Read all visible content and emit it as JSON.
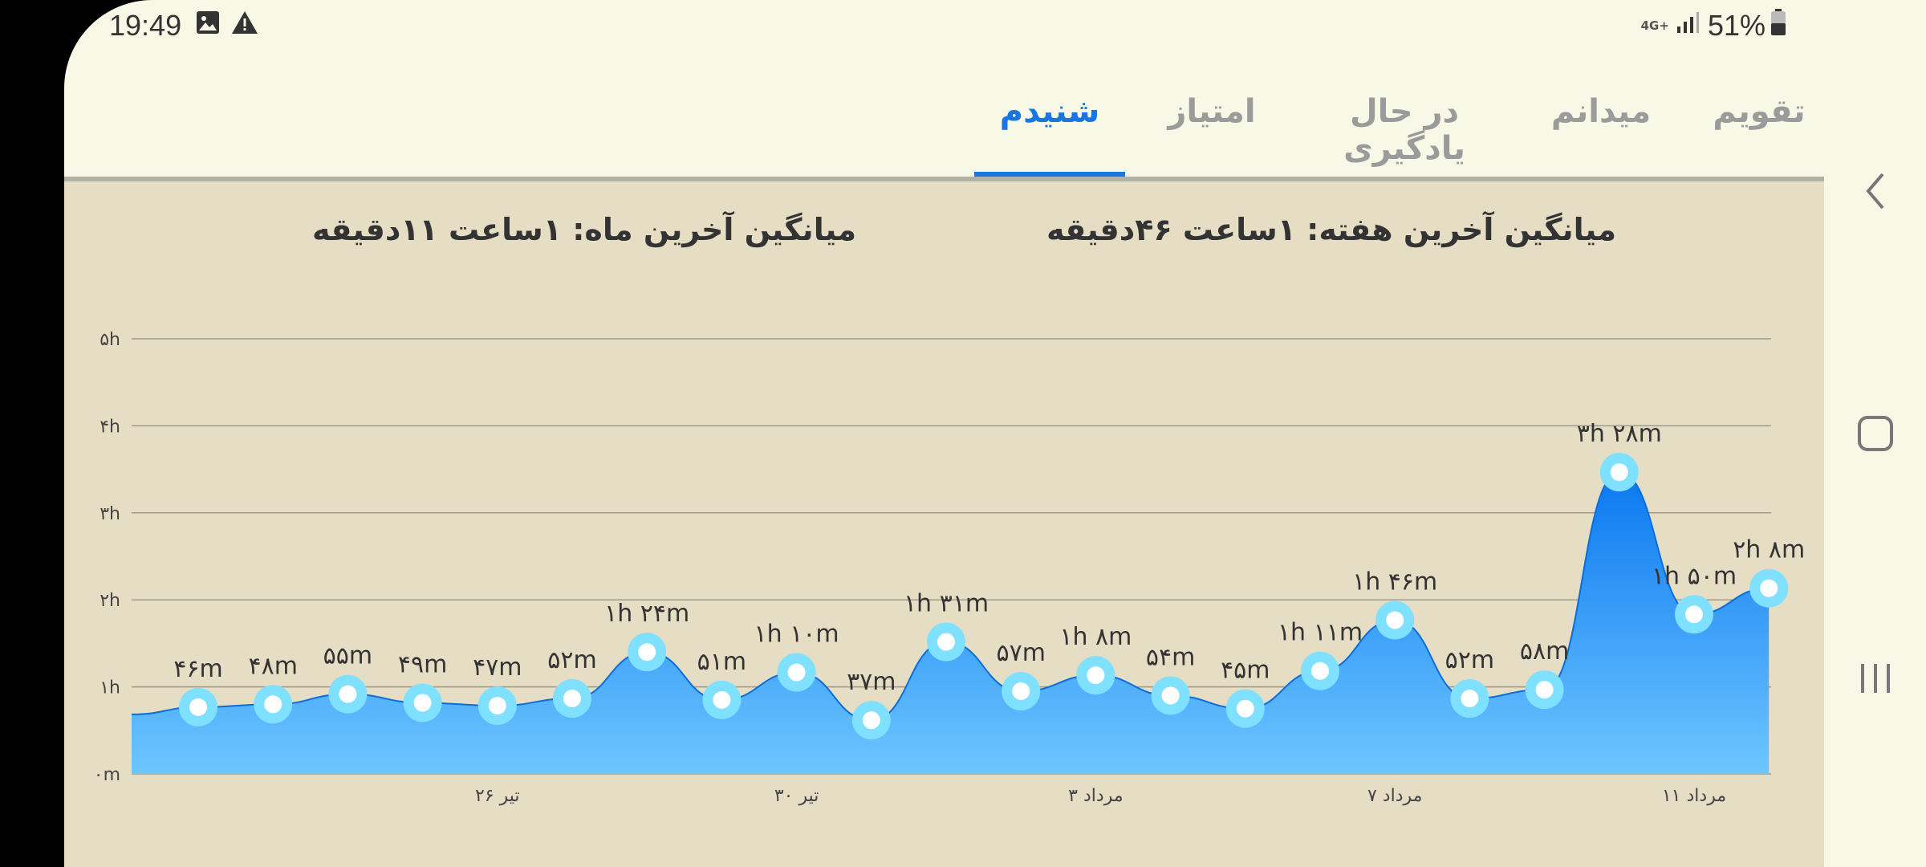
{
  "status_bar": {
    "time": "19:49",
    "network": "4G+",
    "battery": "51%",
    "icons": [
      "image-icon",
      "warning-icon",
      "signal-icon",
      "battery-icon"
    ]
  },
  "tabs": [
    {
      "label": "تقویم",
      "active": false
    },
    {
      "label": "میدانم",
      "active": false
    },
    {
      "label": "در حال یادگیری",
      "active": false
    },
    {
      "label": "امتیاز",
      "active": false
    },
    {
      "label": "شنیدم",
      "active": true
    }
  ],
  "averages": {
    "week": "میانگین آخرین هفته:  ۱ساعت  ۴۶دقیقه",
    "month": "میانگین آخرین ماه:  ۱ساعت  ۱۱دقیقه"
  },
  "colors": {
    "accent": "#1976e0",
    "area_top": "#0a78f0",
    "area_bottom": "#6ec6ff",
    "point_ring": "#7fe0ff",
    "background": "#e5ddc4"
  },
  "navigation": {
    "icons": [
      "back-icon",
      "home-icon",
      "recents-icon"
    ]
  },
  "chart_data": {
    "type": "area",
    "y_unit": "minutes",
    "ylim": [
      0,
      300
    ],
    "ytick_labels": [
      "۰m",
      "۱h",
      "۲h",
      "۳h",
      "۴h",
      "۵h"
    ],
    "xtick_labels": [
      {
        "label": "۲۶ تیر",
        "index": 4
      },
      {
        "label": "۳۰ تیر",
        "index": 8
      },
      {
        "label": "۳ مرداد",
        "index": 12
      },
      {
        "label": "۷ مرداد",
        "index": 16
      },
      {
        "label": "۱۱ مرداد",
        "index": 20
      }
    ],
    "leading_value": 41,
    "points": [
      {
        "label": "۴۶m",
        "value": 46
      },
      {
        "label": "۴۸m",
        "value": 48
      },
      {
        "label": "۵۵m",
        "value": 55
      },
      {
        "label": "۴۹m",
        "value": 49
      },
      {
        "label": "۴۷m",
        "value": 47
      },
      {
        "label": "۵۲m",
        "value": 52
      },
      {
        "label": "۱h ۲۴m",
        "value": 84
      },
      {
        "label": "۵۱m",
        "value": 51
      },
      {
        "label": "۱h ۱۰m",
        "value": 70
      },
      {
        "label": "۳۷m",
        "value": 37
      },
      {
        "label": "۱h ۳۱m",
        "value": 91
      },
      {
        "label": "۵۷m",
        "value": 57
      },
      {
        "label": "۱h ۸m",
        "value": 68
      },
      {
        "label": "۵۴m",
        "value": 54
      },
      {
        "label": "۴۵m",
        "value": 45
      },
      {
        "label": "۱h ۱۱m",
        "value": 71
      },
      {
        "label": "۱h ۴۶m",
        "value": 106
      },
      {
        "label": "۵۲m",
        "value": 52
      },
      {
        "label": "۵۸m",
        "value": 58
      },
      {
        "label": "۳h ۲۸m",
        "value": 208
      },
      {
        "label": "۱h ۵۰m",
        "value": 110
      },
      {
        "label": "۲h ۸m",
        "value": 128
      }
    ],
    "grid": true
  }
}
